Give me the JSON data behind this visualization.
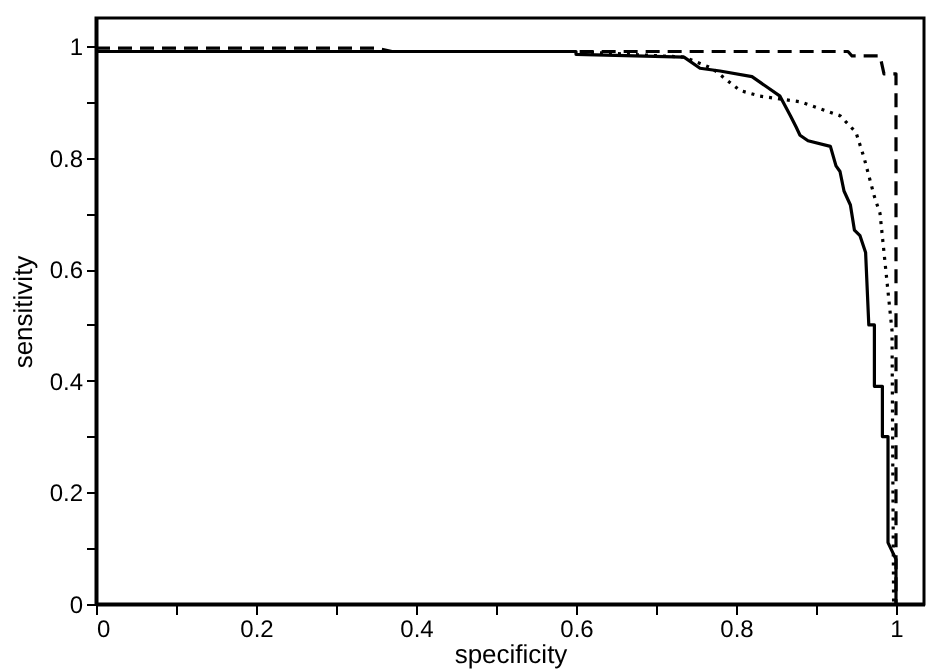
{
  "chart_data": {
    "type": "line",
    "xlabel": "specificity",
    "ylabel": "sensitivity",
    "xlim": [
      0,
      1.035
    ],
    "ylim": [
      0,
      1.05
    ],
    "xticks": [
      0,
      {
        "value": 0.1,
        "label": null
      },
      0.2,
      {
        "value": 0.3,
        "label": null
      },
      0.4,
      {
        "value": 0.5,
        "label": null
      },
      0.6,
      {
        "value": 0.7,
        "label": null
      },
      0.8,
      {
        "value": 0.9,
        "label": null
      },
      1
    ],
    "yticks": [
      0,
      {
        "value": 0.1,
        "label": null
      },
      0.2,
      {
        "value": 0.3,
        "label": null
      },
      0.4,
      {
        "value": 0.5,
        "label": null
      },
      0.6,
      {
        "value": 0.7,
        "label": null
      },
      0.8,
      {
        "value": 0.9,
        "label": null
      },
      1
    ],
    "grid": false,
    "marker": "none",
    "series": [
      {
        "color": "#000000",
        "line_style": "solid",
        "x": [
          0,
          0.6,
          0.6,
          0.735,
          0.755,
          0.78,
          0.82,
          0.84,
          0.855,
          0.868,
          0.875,
          0.88,
          0.89,
          0.918,
          0.925,
          0.93,
          0.935,
          0.943,
          0.948,
          0.955,
          0.962,
          0.966,
          0.973,
          0.973,
          0.983,
          0.983,
          0.99,
          0.99,
          1,
          1
        ],
        "values": [
          0.99,
          0.99,
          0.985,
          0.98,
          0.96,
          0.955,
          0.945,
          0.925,
          0.91,
          0.875,
          0.855,
          0.84,
          0.83,
          0.82,
          0.785,
          0.775,
          0.74,
          0.715,
          0.67,
          0.66,
          0.63,
          0.5,
          0.5,
          0.39,
          0.39,
          0.3,
          0.3,
          0.11,
          0.08,
          0
        ]
      },
      {
        "color": "#000000",
        "line_style": "dotted",
        "x": [
          0,
          0.6,
          0.735,
          0.77,
          0.805,
          0.83,
          0.88,
          0.93,
          0.95,
          0.96,
          0.973,
          0.98,
          0.985,
          0.99,
          0.995,
          0.997
        ],
        "values": [
          0.99,
          0.99,
          0.98,
          0.96,
          0.92,
          0.91,
          0.9,
          0.875,
          0.845,
          0.8,
          0.73,
          0.7,
          0.63,
          0.56,
          0.49,
          0
        ]
      },
      {
        "color": "#000000",
        "line_style": "dashed",
        "x": [
          0,
          0.35,
          0.37,
          0.94,
          0.945,
          0.98,
          0.985,
          1,
          1
        ],
        "values": [
          0.996,
          0.996,
          0.99,
          0.99,
          0.982,
          0.982,
          0.95,
          0.95,
          0
        ]
      }
    ]
  }
}
